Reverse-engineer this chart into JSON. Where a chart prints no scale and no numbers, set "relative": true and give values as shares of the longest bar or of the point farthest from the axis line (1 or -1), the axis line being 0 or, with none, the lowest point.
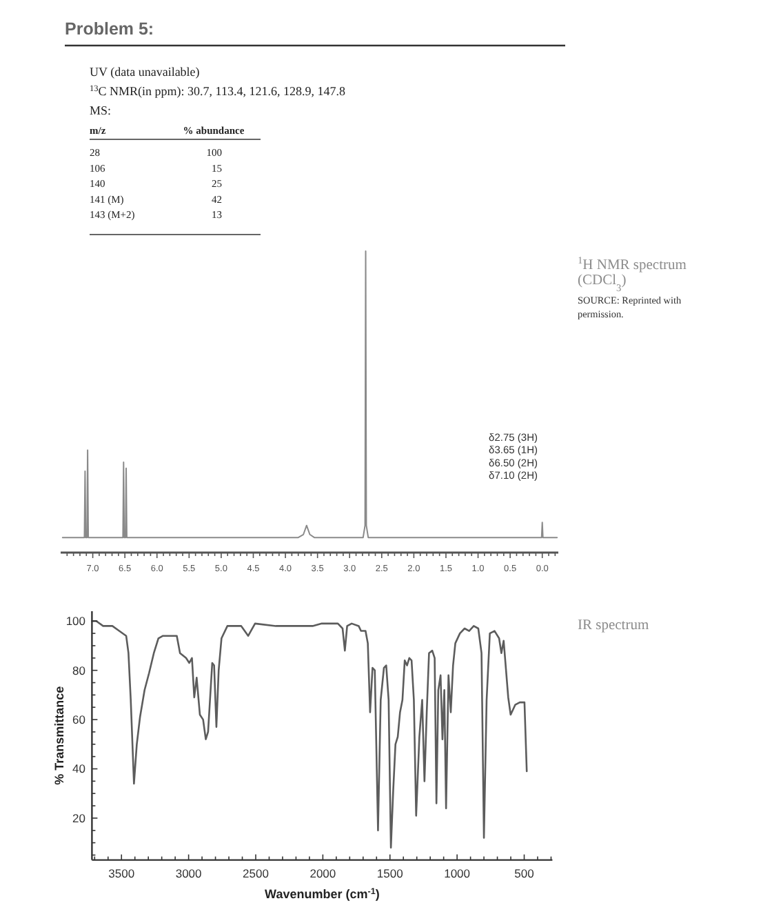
{
  "chart_data": [
    {
      "type": "other",
      "title": "Problem 5:",
      "annotations": [
        "UV (data unavailable)",
        "$^{13}$C NMR(in ppm): 30.7, 113.4, 121.6, 128.9, 147.8",
        "MS:"
      ],
      "xlabel": "m/z",
      "ylabel": "% abundance",
      "categories": [
        "28",
        "106",
        "140",
        "141 (M)",
        "143 (M+2)"
      ],
      "values": [
        100,
        15,
        25,
        42,
        13
      ],
      "data_labels": true
    },
    {
      "type": "line",
      "annotations": [
        "$^{1}$H NMR spectrum (CDCl$_{3}$)",
        "SOURCE: Reprinted with permission.",
        "δ2.75 (3H)",
        "δ3.65 (1H)",
        "δ6.50 (2H)",
        "δ7.10 (2H)"
      ],
      "relative": true,
      "color": "#8a8a8a",
      "xlim": [
        7.5,
        -0.25
      ],
      "xticks": [
        {
          "value": 7.4,
          "label": null
        },
        {
          "value": 7.3,
          "label": null
        },
        {
          "value": 7.2,
          "label": null
        },
        {
          "value": 7.1,
          "label": null
        },
        {
          "value": 7,
          "label": "7.0"
        },
        {
          "value": 6.9,
          "label": null
        },
        {
          "value": 6.8,
          "label": null
        },
        {
          "value": 6.7,
          "label": null
        },
        {
          "value": 6.6,
          "label": null
        },
        6.5,
        {
          "value": 6.4,
          "label": null
        },
        {
          "value": 6.3,
          "label": null
        },
        {
          "value": 6.2,
          "label": null
        },
        {
          "value": 6.1,
          "label": null
        },
        {
          "value": 6,
          "label": "6.0"
        },
        {
          "value": 5.9,
          "label": null
        },
        {
          "value": 5.8,
          "label": null
        },
        {
          "value": 5.7,
          "label": null
        },
        {
          "value": 5.6,
          "label": null
        },
        5.5,
        {
          "value": 5.4,
          "label": null
        },
        {
          "value": 5.3,
          "label": null
        },
        {
          "value": 5.2,
          "label": null
        },
        {
          "value": 5.1,
          "label": null
        },
        {
          "value": 5,
          "label": "5.0"
        },
        {
          "value": 4.9,
          "label": null
        },
        {
          "value": 4.8,
          "label": null
        },
        {
          "value": 4.7,
          "label": null
        },
        {
          "value": 4.6,
          "label": null
        },
        4.5,
        {
          "value": 4.4,
          "label": null
        },
        {
          "value": 4.3,
          "label": null
        },
        {
          "value": 4.2,
          "label": null
        },
        {
          "value": 4.1,
          "label": null
        },
        {
          "value": 4,
          "label": "4.0"
        },
        {
          "value": 3.9,
          "label": null
        },
        {
          "value": 3.8,
          "label": null
        },
        {
          "value": 3.7,
          "label": null
        },
        {
          "value": 3.6,
          "label": null
        },
        3.5,
        {
          "value": 3.4,
          "label": null
        },
        {
          "value": 3.3,
          "label": null
        },
        {
          "value": 3.2,
          "label": null
        },
        {
          "value": 3.1,
          "label": null
        },
        {
          "value": 3,
          "label": "3.0"
        },
        {
          "value": 2.9,
          "label": null
        },
        {
          "value": 2.8,
          "label": null
        },
        {
          "value": 2.7,
          "label": null
        },
        {
          "value": 2.6,
          "label": null
        },
        2.5,
        {
          "value": 2.4,
          "label": null
        },
        {
          "value": 2.3,
          "label": null
        },
        {
          "value": 2.2,
          "label": null
        },
        {
          "value": 2.1,
          "label": null
        },
        {
          "value": 2,
          "label": "2.0"
        },
        {
          "value": 1.9,
          "label": null
        },
        {
          "value": 1.8,
          "label": null
        },
        {
          "value": 1.7,
          "label": null
        },
        {
          "value": 1.6,
          "label": null
        },
        1.5,
        {
          "value": 1.4,
          "label": null
        },
        {
          "value": 1.3,
          "label": null
        },
        {
          "value": 1.2,
          "label": null
        },
        {
          "value": 1.1,
          "label": null
        },
        {
          "value": 1,
          "label": "1.0"
        },
        {
          "value": 0.9,
          "label": null
        },
        {
          "value": 0.8,
          "label": null
        },
        {
          "value": 0.7,
          "label": null
        },
        {
          "value": 0.6,
          "label": null
        },
        0.5,
        {
          "value": 0.4,
          "label": null
        },
        {
          "value": 0.3,
          "label": null
        },
        {
          "value": 0.2,
          "label": null
        },
        {
          "value": 0.1,
          "label": null
        },
        {
          "value": 0,
          "label": "0.0"
        },
        {
          "value": -0.1,
          "label": null
        },
        {
          "value": -0.2,
          "label": null
        }
      ],
      "x": [
        7.47,
        7.13,
        7.12,
        7.11,
        7.09,
        7.08,
        7.07,
        6.53,
        6.52,
        6.51,
        6.49,
        6.48,
        6.47,
        3.8,
        3.72,
        3.67,
        3.62,
        3.55,
        2.79,
        2.76,
        2.75,
        2.74,
        2.71,
        0.01,
        0,
        -0.01,
        -0.23
      ],
      "values": [
        0.05,
        0.05,
        0.27,
        0.05,
        0.05,
        0.34,
        0.05,
        0.05,
        0.3,
        0.05,
        0.05,
        0.28,
        0.05,
        0.05,
        0.06,
        0.09,
        0.06,
        0.05,
        0.05,
        0.09,
        1,
        0.09,
        0.05,
        0.05,
        0.1,
        0.05,
        0.05
      ]
    },
    {
      "type": "line",
      "annotations": [
        "IR spectrum"
      ],
      "xlabel": "Wavenumber (cm$^{-1}$)",
      "ylabel": "% Transmittance",
      "color": "#5c5c5c",
      "xlim": [
        3720,
        290
      ],
      "ylim": [
        3,
        104
      ],
      "xticks": [
        {
          "value": 3700,
          "label": null
        },
        {
          "value": 3600,
          "label": null
        },
        3500,
        {
          "value": 3400,
          "label": null
        },
        {
          "value": 3300,
          "label": null
        },
        {
          "value": 3200,
          "label": null
        },
        {
          "value": 3100,
          "label": null
        },
        3000,
        {
          "value": 2900,
          "label": null
        },
        {
          "value": 2800,
          "label": null
        },
        {
          "value": 2700,
          "label": null
        },
        {
          "value": 2600,
          "label": null
        },
        2500,
        {
          "value": 2400,
          "label": null
        },
        {
          "value": 2300,
          "label": null
        },
        {
          "value": 2200,
          "label": null
        },
        {
          "value": 2100,
          "label": null
        },
        2000,
        {
          "value": 1900,
          "label": null
        },
        {
          "value": 1800,
          "label": null
        },
        {
          "value": 1700,
          "label": null
        },
        {
          "value": 1600,
          "label": null
        },
        1500,
        {
          "value": 1400,
          "label": null
        },
        {
          "value": 1300,
          "label": null
        },
        {
          "value": 1200,
          "label": null
        },
        {
          "value": 1100,
          "label": null
        },
        1000,
        {
          "value": 900,
          "label": null
        },
        {
          "value": 800,
          "label": null
        },
        {
          "value": 700,
          "label": null
        },
        {
          "value": 600,
          "label": null
        },
        500,
        {
          "value": 400,
          "label": null
        },
        {
          "value": 300,
          "label": null
        }
      ],
      "yticks": [
        {
          "value": 5,
          "label": null
        },
        {
          "value": 10,
          "label": null
        },
        {
          "value": 15,
          "label": null
        },
        20,
        {
          "value": 25,
          "label": null
        },
        {
          "value": 30,
          "label": null
        },
        {
          "value": 35,
          "label": null
        },
        40,
        {
          "value": 45,
          "label": null
        },
        {
          "value": 50,
          "label": null
        },
        {
          "value": 55,
          "label": null
        },
        60,
        {
          "value": 65,
          "label": null
        },
        {
          "value": 70,
          "label": null
        },
        {
          "value": 75,
          "label": null
        },
        80,
        {
          "value": 85,
          "label": null
        },
        {
          "value": 90,
          "label": null
        },
        {
          "value": 95,
          "label": null
        },
        100
      ],
      "x": [
        3720,
        3688,
        3637,
        3602,
        3568,
        3517,
        3465,
        3448,
        3431,
        3407,
        3386,
        3362,
        3328,
        3294,
        3259,
        3225,
        3191,
        3088,
        3064,
        3019,
        2995,
        2975,
        2958,
        2940,
        2916,
        2892,
        2872,
        2855,
        2824,
        2810,
        2793,
        2776,
        2755,
        2711,
        2659,
        2608,
        2556,
        2505,
        2350,
        2282,
        2076,
        2008,
        1888,
        1853,
        1836,
        1819,
        1785,
        1733,
        1716,
        1682,
        1665,
        1648,
        1630,
        1613,
        1589,
        1569,
        1545,
        1528,
        1510,
        1493,
        1476,
        1459,
        1442,
        1425,
        1407,
        1390,
        1373,
        1356,
        1339,
        1322,
        1305,
        1281,
        1260,
        1243,
        1226,
        1209,
        1185,
        1167,
        1154,
        1140,
        1123,
        1109,
        1095,
        1082,
        1064,
        1047,
        1030,
        1013,
        979,
        944,
        910,
        876,
        842,
        818,
        800,
        780,
        756,
        721,
        687,
        670,
        653,
        619,
        601,
        567,
        533,
        498,
        481
      ],
      "values": [
        100,
        100,
        98,
        98,
        98,
        96,
        94,
        87,
        68,
        34,
        50,
        61,
        72,
        79,
        87,
        93,
        94,
        94,
        87,
        85,
        83,
        85,
        69,
        77,
        62,
        60,
        52,
        55,
        83,
        82,
        57,
        80,
        93,
        98,
        98,
        98,
        94,
        99,
        98,
        98,
        98,
        99,
        99,
        97,
        88,
        98,
        99,
        98,
        96,
        96,
        91,
        63,
        81,
        80,
        15,
        68,
        81,
        82,
        68,
        8,
        31,
        50,
        53,
        63,
        68,
        84,
        82,
        85,
        84,
        68,
        21,
        53,
        68,
        35,
        63,
        87,
        88,
        85,
        26,
        72,
        78,
        52,
        72,
        24,
        78,
        63,
        82,
        91,
        95,
        97,
        96,
        98,
        97,
        87,
        12,
        68,
        95,
        96,
        93,
        87,
        92,
        69,
        62,
        66,
        67,
        67,
        39
      ]
    }
  ]
}
